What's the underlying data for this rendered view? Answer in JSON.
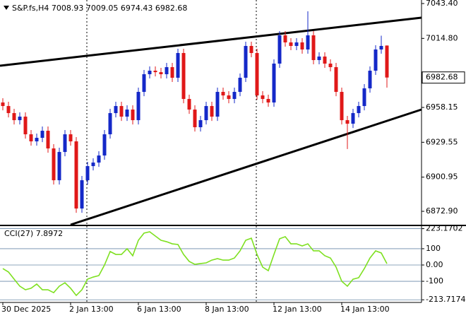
{
  "chart_data": [
    {
      "type": "candlestick",
      "title": "S&P.fs,H4",
      "categories": [
        "30 Dec 2025",
        null,
        null,
        null,
        null,
        null,
        null,
        null,
        null,
        null,
        null,
        null,
        "2 Jan 13:00",
        null,
        null,
        null,
        null,
        null,
        null,
        null,
        null,
        null,
        null,
        null,
        "6 Jan 13:00",
        null,
        null,
        null,
        null,
        null,
        null,
        null,
        null,
        null,
        null,
        null,
        "8 Jan 13:00",
        null,
        null,
        null,
        null,
        null,
        null,
        null,
        null,
        null,
        null,
        null,
        "12 Jan 13:00",
        null,
        null,
        null,
        null,
        null,
        null,
        null,
        null,
        null,
        null,
        null,
        "14 Jan 13:00",
        null,
        null,
        null,
        null,
        null,
        null,
        null,
        null
      ],
      "open": [
        6962.2,
        6959.3,
        6953.5,
        6947.7,
        6950.6,
        6936.1,
        6930.3,
        6933.2,
        6939.0,
        6924.5,
        6898.4,
        6921.6,
        6936.1,
        6930.3,
        6875.2,
        6898.4,
        6910.0,
        6912.9,
        6918.7,
        6936.1,
        6953.5,
        6959.3,
        6950.6,
        6956.4,
        6947.7,
        6970.9,
        6985.4,
        6988.3,
        6987.1,
        6985.4,
        6991.2,
        6982.5,
        7002.8,
        6965.1,
        6956.4,
        6941.9,
        6947.7,
        6959.3,
        6950.6,
        6970.9,
        6968.0,
        6965.1,
        6970.9,
        6982.5,
        7008.6,
        7002.8,
        6968.0,
        6965.1,
        6962.2,
        6994.1,
        7017.3,
        7011.5,
        7008.6,
        7011.5,
        7005.7,
        7017.3,
        6997.0,
        6999.9,
        6994.1,
        6991.2,
        6970.9,
        6947.7,
        6944.8,
        6953.5,
        6959.3,
        6973.8,
        6988.3,
        7005.7,
        7008.93
      ],
      "high": [
        6965.7,
        6962.8,
        6957.0,
        6954.1,
        6954.1,
        6939.6,
        6936.7,
        6942.5,
        6942.5,
        6928.0,
        6925.1,
        6939.6,
        6939.6,
        6933.8,
        6901.9,
        6913.5,
        6916.4,
        6922.2,
        6939.6,
        6957.0,
        6962.8,
        6962.8,
        6959.9,
        6959.9,
        6974.4,
        6988.9,
        6991.8,
        6991.8,
        6990.6,
        6994.7,
        6994.7,
        7006.3,
        7006.3,
        6968.6,
        6959.9,
        6951.2,
        6962.8,
        6962.8,
        6974.4,
        6974.4,
        6971.5,
        6974.4,
        6986.0,
        7012.1,
        7012.1,
        7006.3,
        6971.5,
        6968.6,
        6997.6,
        7020.8,
        7020.8,
        7015.0,
        7015.0,
        7015.0,
        7037.0,
        7020.8,
        7003.4,
        7003.4,
        6997.6,
        6994.7,
        6974.4,
        6951.2,
        6957.0,
        6962.8,
        6977.3,
        6991.8,
        7009.2,
        7017.0,
        7009.05
      ],
      "low": [
        6955.8,
        6950.0,
        6944.2,
        6944.2,
        6932.6,
        6926.8,
        6926.8,
        6929.7,
        6921.0,
        6894.9,
        6894.9,
        6918.1,
        6926.8,
        6871.7,
        6871.7,
        6894.9,
        6906.5,
        6909.4,
        6915.2,
        6932.6,
        6950.0,
        6947.1,
        6947.1,
        6944.2,
        6944.2,
        6967.4,
        6981.9,
        6983.6,
        6981.9,
        6981.9,
        6979.0,
        6979.0,
        6961.6,
        6952.9,
        6938.4,
        6938.4,
        6944.2,
        6947.1,
        6947.1,
        6964.5,
        6961.6,
        6961.6,
        6967.4,
        6979.0,
        6999.3,
        6964.5,
        6961.6,
        6958.7,
        6958.7,
        6990.6,
        7008.0,
        7005.1,
        7005.1,
        7002.2,
        7002.2,
        6993.5,
        6993.5,
        6990.6,
        6987.7,
        6967.4,
        6944.2,
        6924.0,
        6941.3,
        6950.0,
        6955.8,
        6970.3,
        6984.8,
        7002.2,
        6974.43
      ],
      "close": [
        6959.3,
        6953.5,
        6947.7,
        6950.6,
        6936.1,
        6930.3,
        6933.2,
        6939.0,
        6924.5,
        6898.4,
        6921.6,
        6936.1,
        6930.3,
        6875.2,
        6898.4,
        6910.0,
        6912.9,
        6918.7,
        6936.1,
        6953.5,
        6959.3,
        6950.6,
        6956.4,
        6947.7,
        6970.9,
        6985.4,
        6988.3,
        6987.1,
        6985.4,
        6991.2,
        6982.5,
        7002.8,
        6965.1,
        6956.4,
        6941.9,
        6947.7,
        6959.3,
        6950.6,
        6970.9,
        6968.0,
        6965.1,
        6970.9,
        6982.5,
        7008.6,
        7002.8,
        6968.0,
        6965.1,
        6962.2,
        6994.1,
        7017.3,
        7011.5,
        7008.6,
        7011.5,
        7005.7,
        7017.3,
        6997.0,
        6999.9,
        6994.1,
        6991.2,
        6970.9,
        6947.7,
        6944.8,
        6953.5,
        6959.3,
        6973.8,
        6988.3,
        7005.7,
        7008.6,
        6982.68
      ],
      "up_color": "#1428c8",
      "down_color": "#e01818",
      "ylim": [
        6861.9,
        7046.3
      ],
      "yticks": [
        {
          "value": 7043.4,
          "label": "7043.40"
        },
        {
          "value": 7014.8,
          "label": "7014.80"
        },
        6958.15,
        6929.55,
        6900.95,
        {
          "value": 6872.9,
          "label": "6872.90"
        }
      ]
    },
    {
      "type": "line",
      "name": "CCI(27)",
      "color": "#7ee020",
      "values": [
        -22,
        -43,
        -87,
        -130,
        -152,
        -143,
        -117,
        -152,
        -152,
        -170,
        -130,
        -109,
        -143,
        -187,
        -152,
        -87,
        -74,
        -65,
        0,
        83,
        65,
        65,
        100,
        57,
        152,
        196,
        204,
        178,
        152,
        143,
        130,
        126,
        65,
        22,
        4,
        9,
        13,
        30,
        39,
        30,
        30,
        43,
        87,
        152,
        165,
        65,
        -13,
        -35,
        65,
        161,
        174,
        130,
        130,
        117,
        130,
        87,
        87,
        57,
        43,
        -13,
        -100,
        -130,
        -87,
        -78,
        -22,
        43,
        87,
        74,
        7.8972
      ],
      "ylim": [
        -230,
        230
      ],
      "yticks": [
        223.1702,
        100,
        {
          "value": 0,
          "label": "0.00"
        },
        -100,
        -213.7174
      ]
    }
  ]
}
